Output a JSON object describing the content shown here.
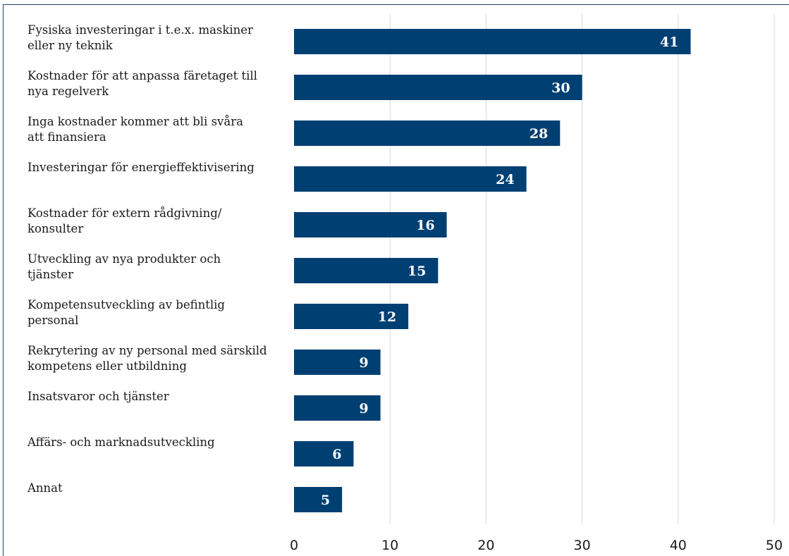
{
  "chart_data": {
    "type": "bar",
    "orientation": "horizontal",
    "categories": [
      [
        "Fysiska investeringar i t.e.x. maskiner",
        "eller ny teknik"
      ],
      [
        "Kostnader för att anpassa färetaget till",
        "nya regelverk"
      ],
      [
        "Inga kostnader kommer att bli svåra",
        "att finansiera"
      ],
      [
        "Investeringar för energieffektivisering"
      ],
      [
        "Kostnader för extern rådgivning/",
        "konsulter"
      ],
      [
        "Utveckling av nya produkter och",
        "tjänster"
      ],
      [
        "Kompetensutveckling av befintlig",
        "personal"
      ],
      [
        "Rekrytering av ny personal med särskild",
        "kompetens eller utbildning"
      ],
      [
        "Insatsvaror och tjänster"
      ],
      [
        "Affärs- och marknadsutveckling"
      ],
      [
        "Annat"
      ]
    ],
    "values": [
      41.3,
      30,
      27.7,
      24.2,
      15.9,
      15,
      11.9,
      9,
      9,
      6.2,
      5
    ],
    "value_labels": [
      "41",
      "30",
      "28",
      "24",
      "16",
      "15",
      "12",
      "9",
      "9",
      "6",
      "5"
    ],
    "xlim": [
      0,
      50
    ],
    "xticks": [
      "0",
      "10",
      "20",
      "30",
      "40",
      "50"
    ],
    "grid": true,
    "bar_color": "#003f72"
  }
}
